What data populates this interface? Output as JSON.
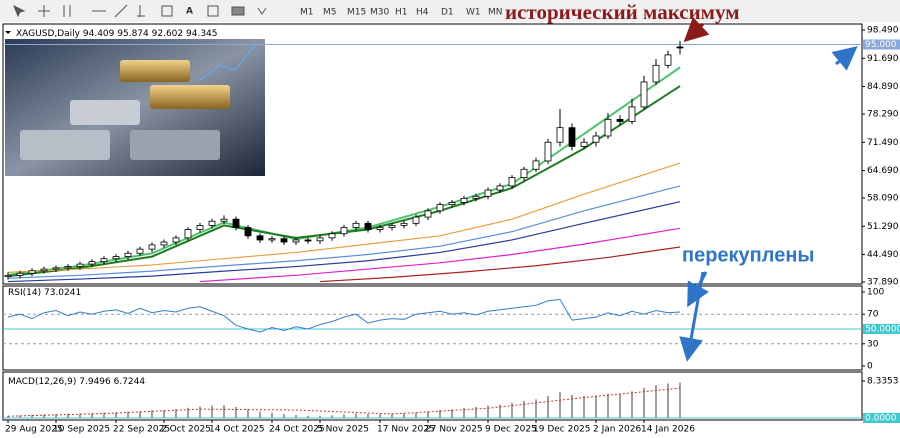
{
  "toolbar": {
    "timeframes": [
      "M1",
      "M5",
      "M15",
      "M30",
      "H1",
      "H4",
      "D1",
      "W1",
      "MN"
    ]
  },
  "chart_data": [
    {
      "type": "candlestick",
      "title": "XAGUSD,Daily",
      "annotations": [
        "исторический максимум",
        "перекуплены"
      ],
      "open": [
        39.2,
        39.5,
        40.0,
        40.6,
        41.0,
        41.3,
        41.6,
        42.2,
        42.8,
        43.5,
        44.0,
        44.8,
        45.8,
        46.8,
        47.5,
        48.5,
        50.5,
        51.5,
        52.5,
        53.0,
        51.0,
        49.0,
        48.0,
        48.3,
        47.5,
        48.0,
        47.8,
        48.5,
        49.5,
        51.0,
        52.0,
        50.5,
        51.0,
        51.5,
        52.0,
        53.5,
        55.0,
        56.5,
        57.0,
        58.0,
        58.5,
        60.0,
        61.0,
        63.0,
        65.0,
        67.0,
        71.5,
        75.0,
        70.5,
        71.5,
        73.0,
        77.0,
        76.5,
        80.0,
        86.0,
        90.0,
        94.409
      ],
      "high": [
        40.2,
        40.6,
        41.2,
        41.6,
        41.9,
        42.2,
        42.8,
        43.4,
        44.1,
        44.6,
        45.4,
        46.4,
        47.4,
        48.1,
        49.1,
        51.1,
        52.1,
        53.1,
        53.9,
        53.6,
        51.6,
        49.6,
        48.9,
        48.9,
        48.6,
        48.6,
        49.1,
        50.1,
        51.6,
        52.6,
        52.6,
        51.6,
        52.1,
        52.6,
        54.1,
        55.6,
        57.1,
        57.6,
        58.6,
        59.1,
        60.6,
        61.6,
        63.6,
        65.6,
        67.8,
        72.3,
        79.5,
        76.0,
        72.5,
        74.0,
        78.5,
        78.0,
        82.0,
        87.5,
        91.5,
        93.5,
        95.874
      ],
      "low": [
        38.5,
        38.8,
        39.3,
        39.9,
        40.3,
        40.6,
        40.9,
        41.5,
        42.1,
        42.8,
        43.3,
        44.1,
        45.1,
        46.1,
        46.8,
        47.8,
        49.8,
        50.8,
        51.8,
        50.3,
        48.3,
        47.3,
        47.3,
        46.8,
        46.8,
        47.1,
        47.1,
        47.8,
        48.8,
        50.3,
        49.8,
        49.8,
        50.3,
        50.8,
        51.3,
        52.8,
        54.3,
        55.8,
        56.3,
        57.3,
        57.8,
        59.3,
        60.3,
        62.3,
        64.3,
        66.3,
        70.5,
        69.5,
        69.8,
        70.5,
        72.3,
        75.5,
        75.8,
        79.3,
        85.3,
        89.3,
        92.602
      ],
      "close": [
        39.5,
        40.0,
        40.6,
        41.0,
        41.3,
        41.6,
        42.2,
        42.8,
        43.5,
        44.0,
        44.8,
        45.8,
        46.8,
        47.5,
        48.5,
        50.5,
        51.5,
        52.5,
        53.0,
        51.0,
        49.0,
        48.0,
        48.3,
        47.5,
        48.0,
        47.8,
        48.5,
        49.5,
        51.0,
        52.0,
        50.5,
        51.0,
        51.5,
        52.0,
        53.5,
        55.0,
        56.5,
        57.0,
        58.0,
        58.5,
        60.0,
        61.0,
        63.0,
        65.0,
        67.0,
        71.5,
        75.0,
        70.5,
        71.5,
        73.0,
        77.0,
        76.5,
        80.0,
        86.0,
        90.0,
        92.5,
        94.345
      ],
      "series": [
        {
          "color": "#4cc46c",
          "x": [
            0,
            6,
            12,
            18,
            24,
            30,
            36,
            42,
            48,
            56
          ],
          "values": [
            39.6,
            41.8,
            44.8,
            52.2,
            48.2,
            51.0,
            56.0,
            61.5,
            73.5,
            89.5
          ]
        },
        {
          "color": "#1e7b1e",
          "x": [
            0,
            6,
            12,
            18,
            24,
            30,
            36,
            42,
            48,
            56
          ],
          "values": [
            39.3,
            41.3,
            44.0,
            51.5,
            48.5,
            50.5,
            55.0,
            60.5,
            70.0,
            85.0
          ]
        },
        {
          "color": "#e8a040",
          "x": [
            0,
            6,
            12,
            18,
            24,
            30,
            36,
            42,
            48,
            56
          ],
          "values": [
            40.2,
            41.0,
            42.0,
            43.5,
            45.0,
            47.0,
            49.0,
            53.0,
            59.0,
            66.5
          ]
        },
        {
          "color": "#5b8fd8",
          "x": [
            0,
            6,
            12,
            18,
            24,
            30,
            36,
            42,
            48,
            56
          ],
          "values": [
            38.8,
            39.5,
            40.5,
            41.8,
            43.0,
            44.5,
            46.5,
            50.0,
            55.0,
            61.0
          ]
        },
        {
          "color": "#2a3a9a",
          "x": [
            0,
            6,
            12,
            18,
            24,
            30,
            36,
            42,
            48,
            56
          ],
          "values": [
            38.0,
            38.6,
            39.3,
            40.5,
            41.6,
            43.0,
            45.0,
            48.0,
            52.0,
            57.2
          ]
        },
        {
          "color": "#e020d0",
          "x": [
            16,
            24,
            30,
            36,
            42,
            48,
            56
          ],
          "values": [
            38.0,
            39.5,
            41.0,
            42.5,
            44.5,
            47.0,
            50.8
          ]
        },
        {
          "color": "#b02020",
          "x": [
            26,
            32,
            38,
            44,
            50,
            56
          ],
          "values": [
            38.0,
            39.0,
            40.3,
            41.8,
            43.8,
            46.3
          ]
        }
      ],
      "ylim": [
        37.41,
        99.93
      ],
      "yticks": [
        {
          "value": 98.49,
          "label": "98.490"
        },
        {
          "value": 91.69,
          "label": "91.690"
        },
        {
          "value": 84.89,
          "label": "84.890"
        },
        {
          "value": 78.29,
          "label": "78.290"
        },
        {
          "value": 71.49,
          "label": "71.490"
        },
        {
          "value": 64.69,
          "label": "64.690"
        },
        {
          "value": 58.09,
          "label": "58.090"
        },
        {
          "value": 51.29,
          "label": "51.290"
        },
        {
          "value": 44.49,
          "label": "44.490"
        },
        {
          "value": 37.89,
          "label": "37.890"
        }
      ],
      "level": {
        "value": 95,
        "label": "95.000"
      },
      "level_color": "#8aa8d8",
      "xticks": [
        {
          "value": 0,
          "label": "29 Aug 2025"
        },
        {
          "value": 4,
          "label": "10 Sep 2025"
        },
        {
          "value": 9,
          "label": "22 Sep 2025"
        },
        {
          "value": 13,
          "label": "2 Oct 2025"
        },
        {
          "value": 17,
          "label": "14 Oct 2025"
        },
        {
          "value": 22,
          "label": "24 Oct 2025"
        },
        {
          "value": 26,
          "label": "5 Nov 2025"
        },
        {
          "value": 31,
          "label": "17 Nov 2025"
        },
        {
          "value": 35,
          "label": "27 Nov 2025"
        },
        {
          "value": 40,
          "label": "9 Dec 2025"
        },
        {
          "value": 44,
          "label": "19 Dec 2025"
        },
        {
          "value": 49,
          "label": "2 Jan 2026"
        },
        {
          "value": 53,
          "label": "14 Jan 2026"
        }
      ]
    },
    {
      "type": "line",
      "title": "RSI(14)",
      "color": "#2f7fd0",
      "values": [
        66,
        70,
        64,
        72,
        75,
        68,
        73,
        70,
        74,
        76,
        71,
        78,
        72,
        75,
        73,
        78,
        80,
        74,
        68,
        55,
        50,
        46,
        52,
        48,
        53,
        50,
        56,
        60,
        66,
        70,
        58,
        62,
        64,
        63,
        70,
        72,
        74,
        70,
        72,
        69,
        74,
        76,
        78,
        80,
        82,
        88,
        90,
        62,
        64,
        66,
        72,
        68,
        74,
        70,
        75,
        72,
        73.0241
      ],
      "ylim": [
        -5.4,
        108.1
      ],
      "yticks": [
        100,
        70,
        30,
        0
      ],
      "grid": "inner",
      "level": {
        "value": 50,
        "label": "50.0000"
      },
      "level_color": "#40c8d0"
    },
    {
      "type": "macd",
      "title": "MACD(12,26,9)",
      "color": "#a0a0a0",
      "values": [
        0.5,
        0.6,
        0.7,
        0.8,
        0.9,
        1.0,
        1.0,
        1.1,
        1.2,
        1.3,
        1.4,
        1.5,
        1.7,
        1.8,
        2.0,
        2.3,
        2.6,
        2.8,
        2.9,
        2.5,
        2.0,
        1.5,
        1.2,
        0.9,
        0.7,
        0.5,
        0.5,
        0.6,
        0.8,
        1.0,
        0.9,
        0.9,
        1.0,
        1.0,
        1.2,
        1.5,
        1.8,
        2.0,
        2.3,
        2.5,
        2.8,
        3.0,
        3.4,
        3.8,
        4.2,
        5.0,
        5.8,
        5.2,
        5.0,
        5.0,
        5.4,
        5.5,
        6.0,
        6.8,
        7.4,
        7.8,
        7.9496
      ],
      "signal": {
        "color": "#d03030",
        "x": [
          0,
          8,
          16,
          24,
          32,
          40,
          48,
          56
        ],
        "values": [
          0.4,
          1.0,
          2.0,
          1.8,
          0.9,
          2.2,
          4.6,
          6.7244
        ]
      },
      "ylim": [
        -0.45,
        10.36
      ],
      "yticks": [
        8.3353
      ],
      "level": {
        "value": 0,
        "label": "0.0000"
      },
      "level_color": "#40c8d0"
    }
  ]
}
